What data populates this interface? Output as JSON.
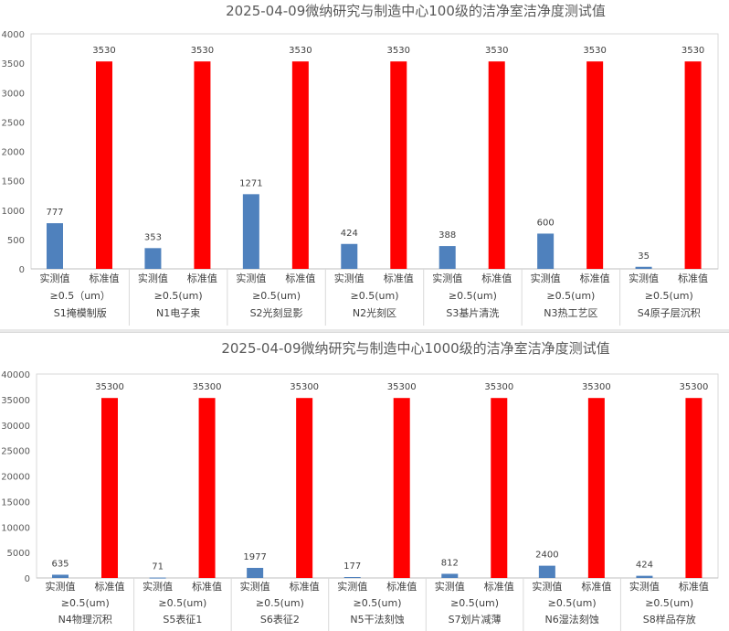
{
  "chart_data": [
    {
      "type": "bar",
      "title": "2025-04-09微纳研究与制造中心100级的洁净室洁净度测试值",
      "ylim": [
        0,
        4000
      ],
      "yticks": [
        0,
        500,
        1000,
        1500,
        2000,
        2500,
        3000,
        3500,
        4000
      ],
      "grid": false,
      "bar_labels": [
        "实测值",
        "标准值"
      ],
      "colors": {
        "实测值": "#4f81bd",
        "标准值": "#ff0000"
      },
      "groups": [
        {
          "particle": "≥0.5（um）",
          "location": "S1掩模制版",
          "values": [
            777,
            3530
          ]
        },
        {
          "particle": "≥0.5(um)",
          "location": "N1电子束",
          "values": [
            353,
            3530
          ]
        },
        {
          "particle": "≥0.5(um)",
          "location": "S2光刻显影",
          "values": [
            1271,
            3530
          ]
        },
        {
          "particle": "≥0.5(um)",
          "location": "N2光刻区",
          "values": [
            424,
            3530
          ]
        },
        {
          "particle": "≥0.5(um)",
          "location": "S3基片清洗",
          "values": [
            388,
            3530
          ]
        },
        {
          "particle": "≥0.5(um)",
          "location": "N3热工艺区",
          "values": [
            600,
            3530
          ]
        },
        {
          "particle": "≥0.5(um)",
          "location": "S4原子层沉积",
          "values": [
            35,
            3530
          ]
        }
      ]
    },
    {
      "type": "bar",
      "title": "2025-04-09微纳研究与制造中心1000级的洁净室洁净度测试值",
      "ylim": [
        0,
        40000
      ],
      "yticks": [
        0,
        5000,
        10000,
        15000,
        20000,
        25000,
        30000,
        35000,
        40000
      ],
      "grid": false,
      "bar_labels": [
        "实测值",
        "标准值"
      ],
      "colors": {
        "实测值": "#4f81bd",
        "标准值": "#ff0000"
      },
      "groups": [
        {
          "particle": "≥0.5(um)",
          "location": "N4物理沉积",
          "values": [
            635,
            35300
          ]
        },
        {
          "particle": "≥0.5(um)",
          "location": "S5表征1",
          "values": [
            71,
            35300
          ]
        },
        {
          "particle": "≥0.5(um)",
          "location": "S6表征2",
          "values": [
            1977,
            35300
          ]
        },
        {
          "particle": "≥0.5(um)",
          "location": "N5干法刻蚀",
          "values": [
            177,
            35300
          ]
        },
        {
          "particle": "≥0.5(um)",
          "location": "S7划片减薄",
          "values": [
            812,
            35300
          ]
        },
        {
          "particle": "≥0.5(um)",
          "location": "N6湿法刻蚀",
          "values": [
            2400,
            35300
          ]
        },
        {
          "particle": "≥0.5(um)",
          "location": "S8样品存放",
          "values": [
            424,
            35300
          ]
        }
      ]
    }
  ]
}
